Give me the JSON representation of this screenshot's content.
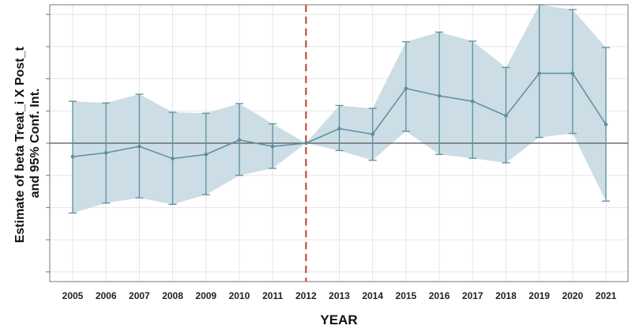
{
  "chart_data": {
    "type": "line",
    "title": "",
    "xlabel": "YEAR",
    "ylabel_line1": "Estimate of beta Treat_i X Post_t",
    "ylabel_line2": "and 95% Conf. Int.",
    "ylim": [
      -4.3,
      4.3
    ],
    "grid": true,
    "reference_year": 2012,
    "categories": [
      "2005",
      "2006",
      "2007",
      "2008",
      "2009",
      "2010",
      "2011",
      "2012",
      "2013",
      "2014",
      "2015",
      "2016",
      "2017",
      "2018",
      "2019",
      "2020",
      "2021"
    ],
    "series": [
      {
        "estimate": [
          -0.42,
          -0.3,
          -0.1,
          -0.48,
          -0.35,
          0.1,
          -0.1,
          0.0,
          0.45,
          0.28,
          1.7,
          1.47,
          1.3,
          0.85,
          2.17,
          2.17,
          0.58
        ],
        "ci_lower": [
          -2.17,
          -1.86,
          -1.7,
          -1.9,
          -1.6,
          -1.0,
          -0.78,
          0.0,
          -0.23,
          -0.53,
          0.37,
          -0.35,
          -0.47,
          -0.61,
          0.18,
          0.3,
          -1.8
        ],
        "ci_upper": [
          1.3,
          1.25,
          1.52,
          0.96,
          0.93,
          1.23,
          0.6,
          0.0,
          1.17,
          1.08,
          3.15,
          3.45,
          3.17,
          2.35,
          4.3,
          4.15,
          2.97
        ]
      }
    ],
    "colors": {
      "band": "#ccdde6",
      "line": "#5b8e9b",
      "reference_line": "#c0503a",
      "zero_line": "#555555",
      "grid": "#e6e6e6"
    }
  }
}
